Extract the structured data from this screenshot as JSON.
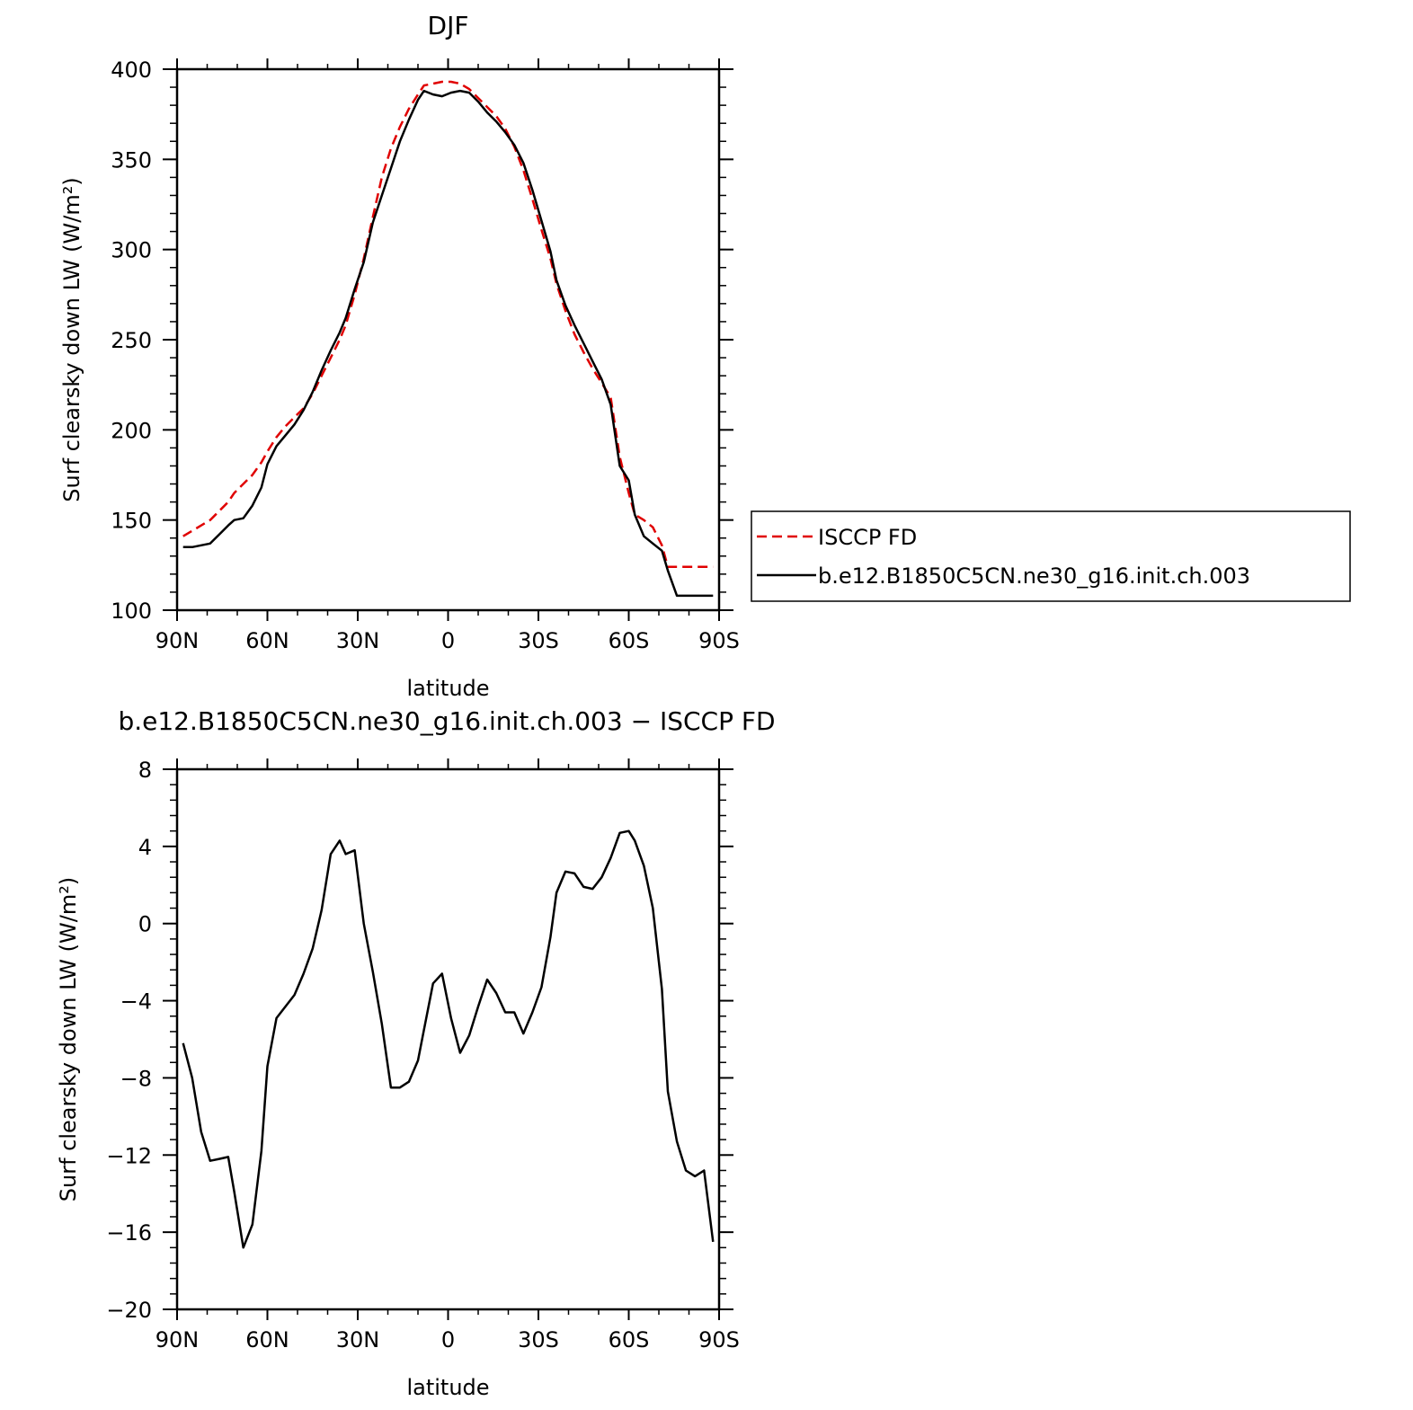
{
  "chart_data": [
    {
      "type": "line",
      "title": "DJF",
      "xlabel": "latitude",
      "ylabel": "Surf clearsky down LW (W/m²)",
      "xlim": [
        90,
        -90
      ],
      "ylim": [
        100,
        400
      ],
      "xticks": [
        90,
        60,
        30,
        0,
        -30,
        -60,
        -90
      ],
      "xtick_labels": [
        "90N",
        "60N",
        "30N",
        "0",
        "30S",
        "60S",
        "90S"
      ],
      "yticks": [
        100,
        150,
        200,
        250,
        300,
        350,
        400
      ],
      "ytick_labels": [
        "100",
        "150",
        "200",
        "250",
        "300",
        "350",
        "400"
      ],
      "legend_position": "right",
      "x": [
        88,
        85,
        82,
        79,
        76,
        73,
        71,
        68,
        65,
        62,
        60,
        57,
        54,
        51,
        48,
        45,
        42,
        39,
        36,
        34,
        31,
        28,
        25,
        22,
        19,
        16,
        13,
        10,
        8,
        5,
        2,
        -1,
        -4,
        -7,
        -10,
        -13,
        -16,
        -19,
        -22,
        -25,
        -28,
        -31,
        -34,
        -36,
        -39,
        -42,
        -45,
        -48,
        -51,
        -54,
        -57,
        -60,
        -62,
        -65,
        -68,
        -71,
        -73,
        -76,
        -79,
        -82,
        -85,
        -88
      ],
      "series": [
        {
          "name": "ISCCP FD",
          "color": "#e00000",
          "dash": "dashed",
          "values": [
            141,
            144,
            147,
            150,
            155,
            160,
            165,
            170,
            175,
            182,
            188,
            196,
            202,
            207,
            212,
            220,
            230,
            240,
            250,
            258,
            275,
            295,
            318,
            340,
            356,
            368,
            378,
            386,
            391,
            392,
            393,
            393,
            392,
            389,
            384,
            379,
            374,
            367,
            357,
            344,
            328,
            311,
            295,
            281,
            266,
            253,
            243,
            234,
            226,
            218,
            185,
            165,
            153,
            150,
            146,
            136,
            124,
            124,
            124,
            124,
            124,
            124
          ]
        },
        {
          "name": "b.e12.B1850C5CN.ne30_g16.init.ch.003",
          "color": "#000000",
          "dash": "solid",
          "values": [
            135,
            135,
            136,
            137,
            142,
            147,
            150,
            151,
            158,
            168,
            181,
            191,
            197,
            203,
            211,
            221,
            233,
            244,
            254,
            262,
            278,
            293,
            315,
            330,
            345,
            360,
            372,
            383,
            388,
            386,
            385,
            387,
            388,
            387,
            382,
            376,
            371,
            365,
            358,
            348,
            333,
            316,
            299,
            283,
            269,
            258,
            248,
            238,
            228,
            214,
            180,
            172,
            153,
            141,
            137,
            133,
            122,
            108,
            108,
            108,
            108,
            108
          ]
        }
      ]
    },
    {
      "type": "line",
      "title": "b.e12.B1850C5CN.ne30_g16.init.ch.003 − ISCCP FD",
      "xlabel": "latitude",
      "ylabel": "Surf clearsky down LW (W/m²)",
      "xlim": [
        90,
        -90
      ],
      "ylim": [
        -20,
        8
      ],
      "xticks": [
        90,
        60,
        30,
        0,
        -30,
        -60,
        -90
      ],
      "xtick_labels": [
        "90N",
        "60N",
        "30N",
        "0",
        "30S",
        "60S",
        "90S"
      ],
      "yticks": [
        8,
        4,
        0,
        -4,
        -8,
        -12,
        -16,
        -20
      ],
      "ytick_labels": [
        "8",
        "4",
        "0",
        "−4",
        "−8",
        "−12",
        "−16",
        "−20"
      ],
      "x": [
        88,
        85,
        82,
        79,
        76,
        73,
        71,
        68,
        65,
        62,
        60,
        57,
        54,
        51,
        48,
        45,
        42,
        39,
        36,
        34,
        31,
        28,
        25,
        22,
        19,
        16,
        13,
        10,
        8,
        5,
        2,
        -1,
        -4,
        -7,
        -10,
        -13,
        -16,
        -19,
        -22,
        -25,
        -28,
        -31,
        -34,
        -36,
        -39,
        -42,
        -45,
        -48,
        -51,
        -54,
        -57,
        -60,
        -62,
        -65,
        -68,
        -71,
        -73,
        -76,
        -79,
        -82,
        -85,
        -88
      ],
      "series": [
        {
          "color": "#000000",
          "dash": "solid",
          "values": [
            -6.2,
            -8.0,
            -10.8,
            -12.3,
            -12.2,
            -12.1,
            -13.9,
            -16.8,
            -15.6,
            -11.8,
            -7.4,
            -4.9,
            -4.3,
            -3.7,
            -2.6,
            -1.3,
            0.7,
            3.6,
            4.3,
            3.6,
            3.8,
            0.0,
            -2.5,
            -5.2,
            -8.5,
            -8.5,
            -8.2,
            -7.1,
            -5.5,
            -3.1,
            -2.6,
            -4.9,
            -6.7,
            -5.8,
            -4.3,
            -2.9,
            -3.6,
            -4.6,
            -4.6,
            -5.7,
            -4.6,
            -3.3,
            -0.7,
            1.6,
            2.7,
            2.6,
            1.9,
            1.8,
            2.4,
            3.4,
            4.7,
            4.8,
            4.3,
            3.0,
            0.8,
            -3.4,
            -8.7,
            -11.3,
            -12.8,
            -13.1,
            -12.8,
            -16.5
          ]
        }
      ]
    }
  ]
}
